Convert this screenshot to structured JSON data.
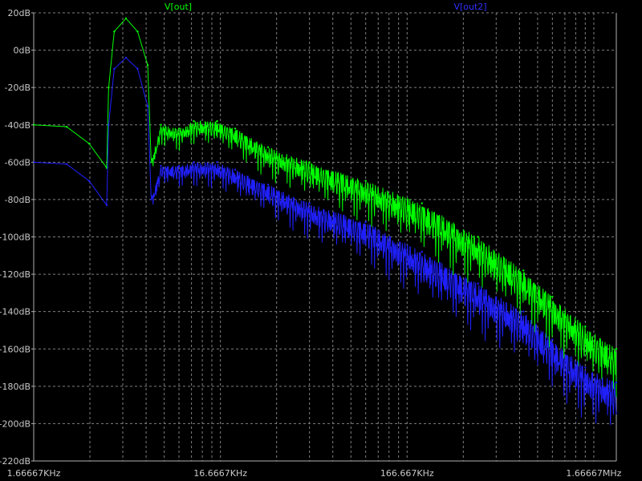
{
  "chart_data": {
    "type": "line",
    "title": "",
    "xlabel": "",
    "ylabel": "",
    "x_scale": "log",
    "xlim_hz": [
      1666.67,
      2200000
    ],
    "ylim": [
      -220,
      20
    ],
    "grid": true,
    "legend_position": "top",
    "y_ticks": [
      "20dB",
      "0dB",
      "-20dB",
      "-40dB",
      "-60dB",
      "-80dB",
      "-100dB",
      "-120dB",
      "-140dB",
      "-160dB",
      "-180dB",
      "-200dB",
      "-220dB"
    ],
    "y_tick_values": [
      20,
      0,
      -20,
      -40,
      -60,
      -80,
      -100,
      -120,
      -140,
      -160,
      -180,
      -200,
      -220
    ],
    "x_ticks": [
      "1.66667KHz",
      "16.6667KHz",
      "166.667KHz",
      "1.66667MHz"
    ],
    "x_tick_values": [
      1666.67,
      16666.7,
      166667,
      1666670
    ],
    "series": [
      {
        "name": "V[out]",
        "color": "#00ff00",
        "x": [
          1666.67,
          2500,
          3300,
          4100,
          4200,
          4500,
          5200,
          6000,
          6800,
          7100,
          8000,
          10000,
          12000,
          16000,
          20000,
          30000,
          50000,
          100000,
          200000,
          400000,
          700000,
          1000000,
          1500000,
          2200000
        ],
        "y": [
          -40,
          -41,
          -50,
          -63,
          -20,
          10,
          17,
          10,
          -8,
          -60,
          -40,
          -42,
          -38,
          -38,
          -42,
          -52,
          -60,
          -70,
          -82,
          -100,
          -118,
          -132,
          -148,
          -160
        ]
      },
      {
        "name": "V[out2]",
        "color": "#2020ff",
        "x": [
          1666.67,
          2500,
          3300,
          4100,
          4200,
          4500,
          5200,
          6000,
          6800,
          7100,
          8000,
          10000,
          12000,
          16000,
          20000,
          30000,
          50000,
          100000,
          200000,
          400000,
          700000,
          1000000,
          1500000,
          2200000
        ],
        "y": [
          -60,
          -61,
          -70,
          -83,
          -40,
          -10,
          -4,
          -10,
          -30,
          -80,
          -62,
          -62,
          -60,
          -60,
          -64,
          -72,
          -82,
          -92,
          -108,
          -125,
          -140,
          -155,
          -170,
          -178
        ]
      }
    ]
  }
}
